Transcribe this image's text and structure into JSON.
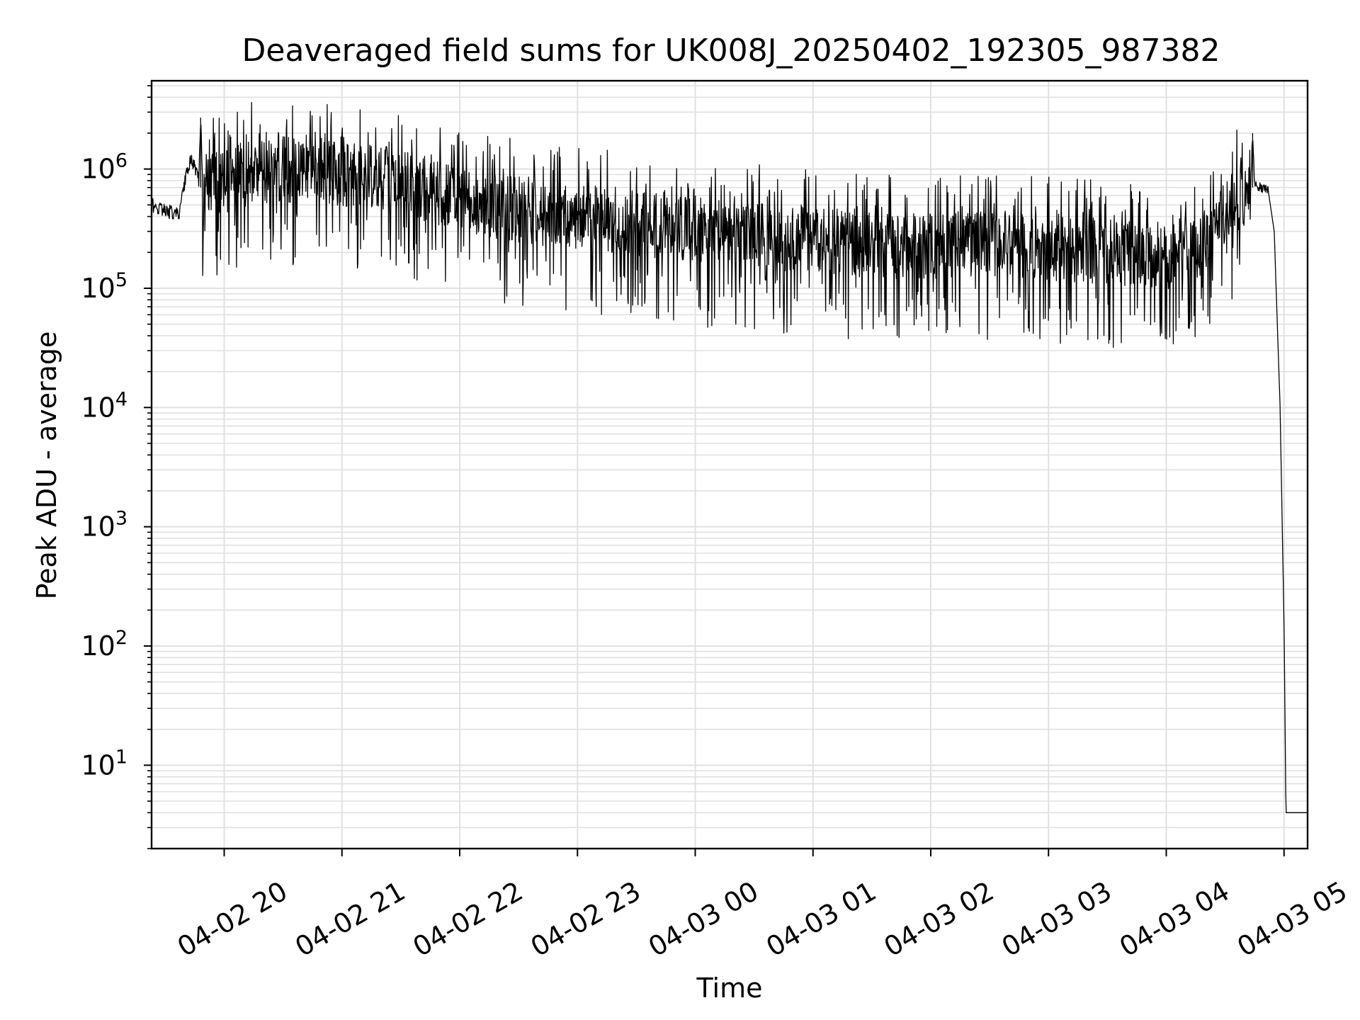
{
  "chart_data": {
    "type": "line",
    "title": "Deaveraged field sums for UK008J_20250402_192305_987382",
    "xlabel": "Time",
    "ylabel": "Peak ADU - average",
    "y_scale": "log",
    "ylim": [
      2,
      5500000
    ],
    "xlim": [
      "2025-04-02 19:23",
      "2025-04-03 05:12"
    ],
    "grid": true,
    "legend": "none",
    "colors": {
      "line": "#000000",
      "grid": "#e0e0e0",
      "axes": "#000000"
    },
    "x_tick_labels": [
      {
        "label": "04-02 20",
        "t": "2025-04-02 20:00"
      },
      {
        "label": "04-02 21",
        "t": "2025-04-02 21:00"
      },
      {
        "label": "04-02 22",
        "t": "2025-04-02 22:00"
      },
      {
        "label": "04-02 23",
        "t": "2025-04-02 23:00"
      },
      {
        "label": "04-03 00",
        "t": "2025-04-03 00:00"
      },
      {
        "label": "04-03 01",
        "t": "2025-04-03 01:00"
      },
      {
        "label": "04-03 02",
        "t": "2025-04-03 02:00"
      },
      {
        "label": "04-03 03",
        "t": "2025-04-03 03:00"
      },
      {
        "label": "04-03 04",
        "t": "2025-04-03 04:00"
      },
      {
        "label": "04-03 05",
        "t": "2025-04-03 05:00"
      }
    ],
    "y_tick_labels": [
      {
        "base": "10",
        "exp": "1",
        "value": 10
      },
      {
        "base": "10",
        "exp": "2",
        "value": 100
      },
      {
        "base": "10",
        "exp": "3",
        "value": 1000
      },
      {
        "base": "10",
        "exp": "4",
        "value": 10000
      },
      {
        "base": "10",
        "exp": "5",
        "value": 100000
      },
      {
        "base": "10",
        "exp": "6",
        "value": 1000000
      }
    ],
    "series": [
      {
        "points": [
          [
            "2025-04-02 19:23",
            500000
          ],
          [
            "2025-04-02 19:30",
            450000
          ],
          [
            "2025-04-02 19:37",
            420000
          ],
          [
            "2025-04-02 19:40",
            800000
          ],
          [
            "2025-04-02 19:43",
            1250000
          ],
          [
            "2025-04-02 19:47",
            800000
          ],
          [
            "2025-04-02 19:48",
            2700000
          ],
          [
            "2025-04-02 19:49",
            700000
          ],
          [
            "2025-04-02 20:10",
            900000
          ],
          [
            "2025-04-02 20:30",
            1000000
          ],
          [
            "2025-04-02 21:00",
            900000
          ],
          [
            "2025-04-02 21:30",
            800000
          ],
          [
            "2025-04-02 22:00",
            550000
          ],
          [
            "2025-04-02 22:30",
            450000
          ],
          [
            "2025-04-02 23:00",
            400000
          ],
          [
            "2025-04-02 23:30",
            350000
          ],
          [
            "2025-04-03 00:00",
            300000
          ],
          [
            "2025-04-03 00:30",
            280000
          ],
          [
            "2025-04-03 01:00",
            250000
          ],
          [
            "2025-04-03 01:30",
            230000
          ],
          [
            "2025-04-03 02:00",
            220000
          ],
          [
            "2025-04-03 02:30",
            230000
          ],
          [
            "2025-04-03 03:00",
            220000
          ],
          [
            "2025-04-03 03:30",
            200000
          ],
          [
            "2025-04-03 04:00",
            180000
          ],
          [
            "2025-04-03 04:15",
            200000
          ],
          [
            "2025-04-03 04:28",
            400000
          ],
          [
            "2025-04-03 04:43",
            700000
          ],
          [
            "2025-04-03 04:44",
            2000000
          ],
          [
            "2025-04-03 04:45",
            750000
          ],
          [
            "2025-04-03 04:52",
            650000
          ],
          [
            "2025-04-03 04:55",
            300000
          ],
          [
            "2025-04-03 04:58",
            10000
          ],
          [
            "2025-04-03 05:00",
            150
          ],
          [
            "2025-04-03 05:01",
            4
          ],
          [
            "2025-04-03 05:12",
            4
          ]
        ]
      }
    ]
  }
}
